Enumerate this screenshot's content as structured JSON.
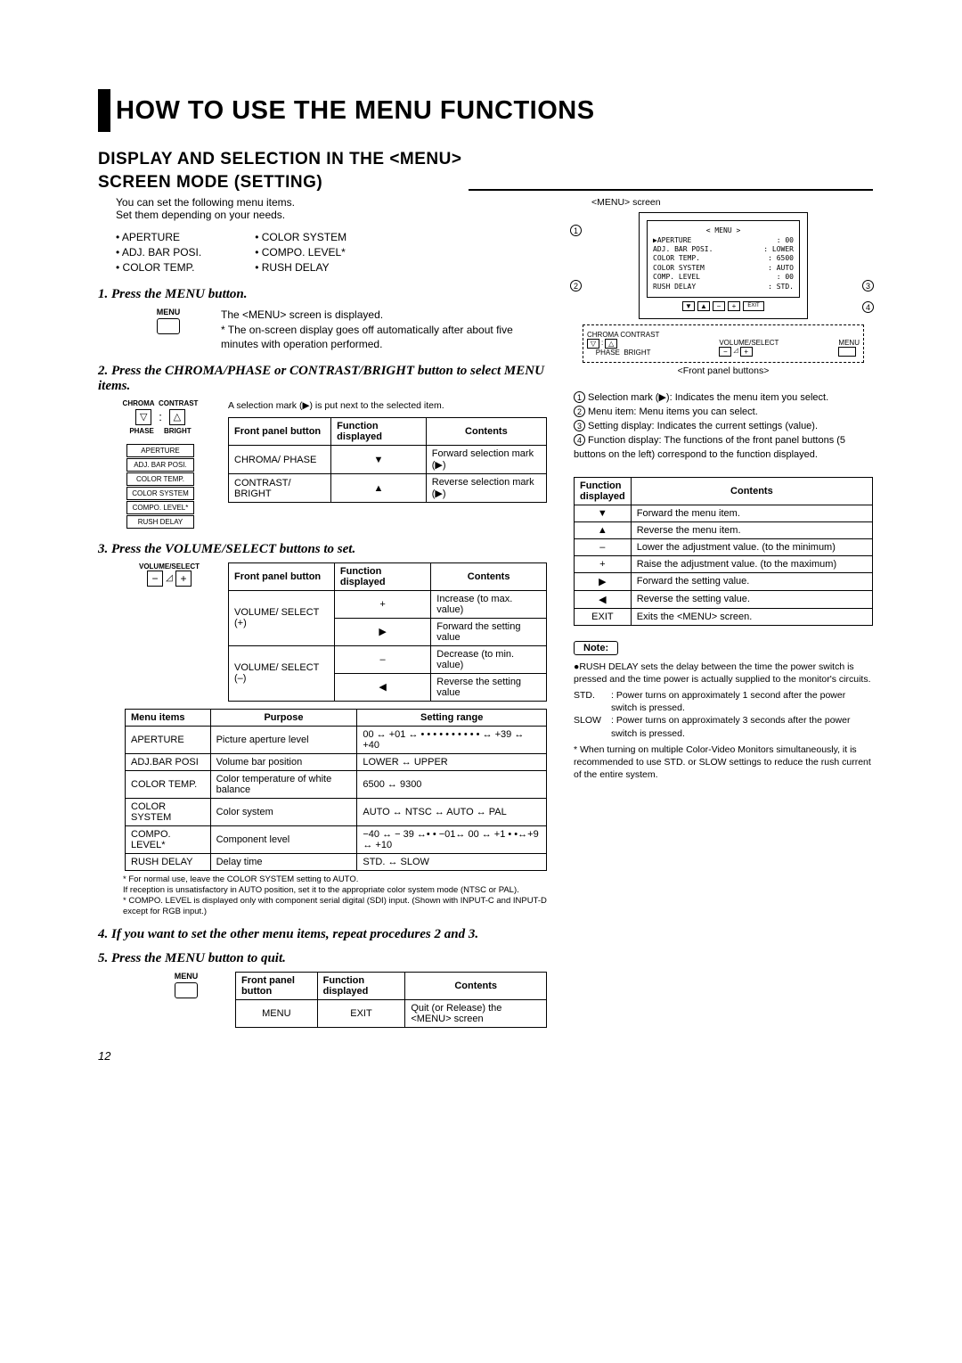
{
  "title": "HOW TO USE THE MENU FUNCTIONS",
  "subtitle_l1": "DISPLAY AND SELECTION IN THE <MENU>",
  "subtitle_l2": "SCREEN MODE (SETTING)",
  "intro_l1": "You can set the following menu items.",
  "intro_l2": "Set them depending on your needs.",
  "bullets_left": [
    "• APERTURE",
    "• ADJ. BAR POSI.",
    "• COLOR TEMP."
  ],
  "bullets_right": [
    "• COLOR SYSTEM",
    "• COMPO. LEVEL*",
    "• RUSH DELAY"
  ],
  "step1": "1. Press the MENU button.",
  "step1_label": "MENU",
  "step1_text1": "The <MENU> screen is displayed.",
  "step1_text2": "* The on-screen display goes off automatically after about five minutes with operation performed.",
  "step2": "2. Press the CHROMA/PHASE or CONTRAST/BRIGHT button to select MENU items.",
  "step2_text": "A selection mark (▶) is put next to the selected item.",
  "step2_panel": {
    "top_left": "CHROMA",
    "top_right": "CONTRAST",
    "bot_left": "PHASE",
    "bot_right": "BRIGHT"
  },
  "flow": [
    "APERTURE",
    "ADJ. BAR POSI.",
    "COLOR TEMP.",
    "COLOR SYSTEM",
    "COMPO. LEVEL*",
    "RUSH DELAY"
  ],
  "t2": {
    "h": [
      "Front panel button",
      "Function displayed",
      "Contents"
    ],
    "r": [
      [
        "CHROMA/ PHASE",
        "▼",
        "Forward selection mark (▶)"
      ],
      [
        "CONTRAST/ BRIGHT",
        "▲",
        "Reverse selection mark (▶)"
      ]
    ]
  },
  "step3": "3. Press the VOLUME/SELECT buttons to set.",
  "step3_label": "VOLUME/SELECT",
  "t3a": {
    "h": [
      "Front panel button",
      "Function displayed",
      "Contents"
    ],
    "r": [
      [
        "VOLUME/ SELECT (+)",
        "+",
        "Increase (to max. value)"
      ],
      [
        "",
        "▶",
        "Forward the setting value"
      ],
      [
        "VOLUME/ SELECT (–)",
        "–",
        "Decrease (to min. value)"
      ],
      [
        "",
        "◀",
        "Reverse the setting value"
      ]
    ]
  },
  "t3b": {
    "h": [
      "Menu items",
      "Purpose",
      "Setting range"
    ],
    "r": [
      [
        "APERTURE",
        "Picture aperture level",
        "00 ↔ +01 ↔ • • • • • • • • • • ↔ +39 ↔ +40"
      ],
      [
        "ADJ.BAR POSI",
        "Volume bar position",
        "LOWER ↔ UPPER"
      ],
      [
        "COLOR TEMP.",
        "Color temperature of white balance",
        "6500 ↔ 9300"
      ],
      [
        "COLOR SYSTEM",
        "Color system",
        "AUTO ↔ NTSC ↔ AUTO ↔ PAL"
      ],
      [
        "COMPO. LEVEL*",
        "Component level",
        "−40 ↔ − 39 ↔• • −01↔ 00 ↔ +1 • •↔+9 ↔ +10"
      ],
      [
        "RUSH DELAY",
        "Delay time",
        "STD. ↔ SLOW"
      ]
    ]
  },
  "ast1": "* For normal use, leave the COLOR SYSTEM setting to AUTO.",
  "ast2": "  If reception is unsatisfactory in AUTO position, set it to the appropriate color system mode (NTSC or PAL).",
  "ast3": "* COMPO. LEVEL is displayed only with component serial digital (SDI) input. (Shown with INPUT-C and INPUT-D except for RGB input.)",
  "step4": "4. If you want to set the other menu items, repeat procedures 2 and 3.",
  "step5": "5. Press the MENU button to quit.",
  "t5": {
    "h": [
      "Front panel button",
      "Function displayed",
      "Contents"
    ],
    "r": [
      [
        "MENU",
        "EXIT",
        "Quit (or Release) the <MENU> screen"
      ]
    ]
  },
  "screen_label": "<MENU> screen",
  "screen": {
    "title": "< MENU >",
    "rows": [
      [
        "▶APERTURE",
        ": 00"
      ],
      [
        "ADJ. BAR POSI.",
        ": LOWER"
      ],
      [
        "COLOR TEMP.",
        ": 6500"
      ],
      [
        "COLOR SYSTEM",
        ": AUTO"
      ],
      [
        "COMP. LEVEL",
        ": 00"
      ],
      [
        "RUSH DELAY",
        ": STD."
      ]
    ],
    "bot": [
      "▼",
      "▲",
      "−",
      "+",
      "EXIT"
    ]
  },
  "panel_caption": "<Front panel buttons>",
  "callouts": [
    "Selection mark (▶): Indicates the menu item you select.",
    "Menu item: Menu items you can select.",
    "Setting display: Indicates the current settings (value).",
    "Function display: The functions of the front panel buttons (5 buttons on the left) correspond to the function displayed."
  ],
  "fn_table": {
    "h": [
      "Function displayed",
      "Contents"
    ],
    "r": [
      [
        "▼",
        "Forward the menu item."
      ],
      [
        "▲",
        "Reverse the menu item."
      ],
      [
        "–",
        "Lower the adjustment value. (to the minimum)"
      ],
      [
        "+",
        "Raise the adjustment value. (to the maximum)"
      ],
      [
        "▶",
        "Forward the setting value."
      ],
      [
        "◀",
        "Reverse the setting value."
      ],
      [
        "EXIT",
        "Exits the <MENU> screen."
      ]
    ]
  },
  "note_label": "Note:",
  "note_bullet": "●RUSH DELAY sets the delay between the time the power switch is pressed and the time power is actually supplied to the monitor's circuits.",
  "note_std_lbl": "STD.",
  "note_std": ": Power turns on approximately 1 second after the power switch is pressed.",
  "note_slow_lbl": "SLOW",
  "note_slow": ": Power turns on approximately 3 seconds after the power switch is pressed.",
  "note_ast": "* When turning on multiple Color-Video Monitors simultaneously, it is recommended to use STD. or SLOW settings to reduce the rush current of the entire system.",
  "page": "12"
}
